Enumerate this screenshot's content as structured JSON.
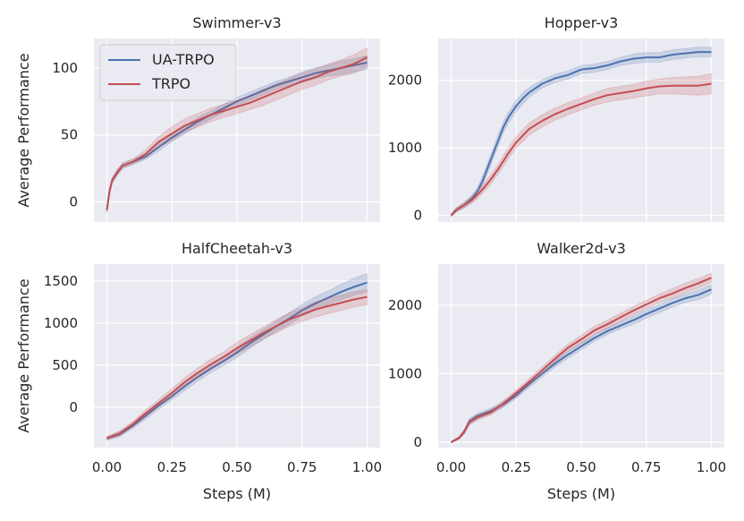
{
  "figure": {
    "ylabel": "Average Performance",
    "xlabel": "Steps (M)",
    "legend": {
      "entries": [
        "UA-TRPO",
        "TRPO"
      ],
      "placement": "upper-left of first panel"
    },
    "colors": {
      "UA-TRPO": "#4c72b0",
      "TRPO": "#c44e52",
      "background": "#eaeaf2",
      "grid": "#ffffff"
    }
  },
  "chart_data": [
    {
      "type": "line",
      "title": "Swimmer-v3",
      "xlabel": "",
      "ylabel": "Average Performance",
      "xlim": [
        -0.05,
        1.05
      ],
      "ylim": [
        -15,
        122
      ],
      "xticks": [
        0.0,
        0.25,
        0.5,
        0.75,
        1.0
      ],
      "xtick_labels": [],
      "yticks": [
        0,
        50,
        100
      ],
      "ytick_labels": [
        "0",
        "50",
        "100"
      ],
      "grid": true,
      "series": [
        {
          "name": "UA-TRPO",
          "x": [
            0.0,
            0.01,
            0.02,
            0.04,
            0.06,
            0.1,
            0.15,
            0.2,
            0.25,
            0.3,
            0.35,
            0.4,
            0.45,
            0.5,
            0.55,
            0.6,
            0.65,
            0.7,
            0.75,
            0.8,
            0.85,
            0.9,
            0.95,
            1.0
          ],
          "y": [
            -6,
            8,
            16,
            22,
            27,
            30,
            34,
            41,
            48,
            54,
            60,
            65,
            70,
            75,
            79,
            83,
            87,
            90,
            93,
            96,
            98,
            100,
            102,
            104
          ],
          "band": [
            2,
            2,
            2,
            2,
            2,
            2,
            2,
            3,
            3,
            3,
            3,
            3,
            3,
            3,
            3,
            3,
            3,
            3,
            4,
            4,
            4,
            5,
            5,
            5
          ]
        },
        {
          "name": "TRPO",
          "x": [
            0.0,
            0.01,
            0.02,
            0.04,
            0.06,
            0.1,
            0.15,
            0.2,
            0.25,
            0.3,
            0.35,
            0.4,
            0.45,
            0.5,
            0.55,
            0.6,
            0.65,
            0.7,
            0.75,
            0.8,
            0.85,
            0.9,
            0.95,
            1.0
          ],
          "y": [
            -6,
            8,
            16,
            22,
            27,
            30,
            36,
            45,
            51,
            57,
            61,
            65,
            68,
            71,
            74,
            78,
            82,
            86,
            90,
            93,
            97,
            100,
            103,
            108
          ],
          "band": [
            2,
            2,
            2,
            2,
            2,
            2,
            3,
            4,
            5,
            5,
            5,
            5,
            5,
            5,
            5,
            6,
            6,
            6,
            6,
            6,
            6,
            6,
            7,
            7
          ]
        }
      ]
    },
    {
      "type": "line",
      "title": "Hopper-v3",
      "xlabel": "",
      "ylabel": "",
      "xlim": [
        -0.05,
        1.05
      ],
      "ylim": [
        -100,
        2620
      ],
      "xticks": [
        0.0,
        0.25,
        0.5,
        0.75,
        1.0
      ],
      "xtick_labels": [],
      "yticks": [
        0,
        1000,
        2000
      ],
      "ytick_labels": [
        "0",
        "1000",
        "2000"
      ],
      "grid": true,
      "series": [
        {
          "name": "UA-TRPO",
          "x": [
            0.0,
            0.02,
            0.05,
            0.08,
            0.1,
            0.12,
            0.15,
            0.18,
            0.2,
            0.22,
            0.25,
            0.28,
            0.3,
            0.35,
            0.4,
            0.45,
            0.5,
            0.55,
            0.6,
            0.65,
            0.7,
            0.75,
            0.8,
            0.85,
            0.9,
            0.95,
            1.0
          ],
          "y": [
            0,
            80,
            150,
            250,
            350,
            500,
            800,
            1100,
            1300,
            1450,
            1620,
            1750,
            1820,
            1950,
            2030,
            2080,
            2160,
            2180,
            2220,
            2280,
            2320,
            2340,
            2340,
            2380,
            2400,
            2420,
            2420
          ],
          "band": [
            20,
            30,
            40,
            50,
            60,
            70,
            80,
            80,
            80,
            80,
            80,
            80,
            70,
            60,
            60,
            60,
            60,
            60,
            60,
            60,
            70,
            70,
            70,
            70,
            70,
            70,
            70
          ]
        },
        {
          "name": "TRPO",
          "x": [
            0.0,
            0.02,
            0.05,
            0.08,
            0.1,
            0.12,
            0.15,
            0.18,
            0.2,
            0.22,
            0.25,
            0.28,
            0.3,
            0.35,
            0.4,
            0.45,
            0.5,
            0.55,
            0.6,
            0.65,
            0.7,
            0.75,
            0.8,
            0.85,
            0.9,
            0.95,
            1.0
          ],
          "y": [
            0,
            80,
            150,
            230,
            300,
            380,
            520,
            680,
            800,
            920,
            1080,
            1200,
            1280,
            1400,
            1500,
            1580,
            1650,
            1720,
            1780,
            1810,
            1840,
            1880,
            1910,
            1920,
            1920,
            1920,
            1950
          ],
          "band": [
            20,
            30,
            40,
            50,
            60,
            60,
            70,
            70,
            80,
            80,
            80,
            90,
            90,
            90,
            90,
            90,
            90,
            90,
            100,
            100,
            100,
            110,
            110,
            120,
            130,
            140,
            150
          ]
        }
      ]
    },
    {
      "type": "line",
      "title": "HalfCheetah-v3",
      "xlabel": "Steps (M)",
      "ylabel": "Average Performance",
      "xlim": [
        -0.05,
        1.05
      ],
      "ylim": [
        -480,
        1700
      ],
      "xticks": [
        0.0,
        0.25,
        0.5,
        0.75,
        1.0
      ],
      "xtick_labels": [
        "0.00",
        "0.25",
        "0.50",
        "0.75",
        "1.00"
      ],
      "yticks": [
        0,
        500,
        1000,
        1500
      ],
      "ytick_labels": [
        "0",
        "500",
        "1000",
        "1500"
      ],
      "grid": true,
      "series": [
        {
          "name": "UA-TRPO",
          "x": [
            0.0,
            0.05,
            0.1,
            0.15,
            0.2,
            0.25,
            0.3,
            0.35,
            0.4,
            0.45,
            0.5,
            0.55,
            0.6,
            0.65,
            0.7,
            0.75,
            0.8,
            0.85,
            0.9,
            0.95,
            1.0
          ],
          "y": [
            -370,
            -320,
            -220,
            -100,
            20,
            130,
            250,
            360,
            460,
            550,
            650,
            760,
            860,
            960,
            1050,
            1150,
            1230,
            1300,
            1370,
            1430,
            1480
          ],
          "band": [
            20,
            30,
            30,
            40,
            40,
            40,
            50,
            50,
            50,
            50,
            60,
            60,
            60,
            60,
            70,
            70,
            80,
            80,
            90,
            100,
            110
          ]
        },
        {
          "name": "TRPO",
          "x": [
            0.0,
            0.05,
            0.1,
            0.15,
            0.2,
            0.25,
            0.3,
            0.35,
            0.4,
            0.45,
            0.5,
            0.55,
            0.6,
            0.65,
            0.7,
            0.75,
            0.8,
            0.85,
            0.9,
            0.95,
            1.0
          ],
          "y": [
            -370,
            -310,
            -200,
            -70,
            50,
            170,
            300,
            410,
            510,
            600,
            700,
            790,
            880,
            960,
            1040,
            1100,
            1160,
            1200,
            1240,
            1280,
            1310
          ],
          "band": [
            20,
            30,
            30,
            40,
            40,
            50,
            50,
            60,
            60,
            60,
            70,
            70,
            70,
            80,
            80,
            80,
            90,
            90,
            90,
            90,
            90
          ]
        }
      ]
    },
    {
      "type": "line",
      "title": "Walker2d-v3",
      "xlabel": "Steps (M)",
      "ylabel": "",
      "xlim": [
        -0.05,
        1.05
      ],
      "ylim": [
        -80,
        2600
      ],
      "xticks": [
        0.0,
        0.25,
        0.5,
        0.75,
        1.0
      ],
      "xtick_labels": [
        "0.00",
        "0.25",
        "0.50",
        "0.75",
        "1.00"
      ],
      "yticks": [
        0,
        1000,
        2000
      ],
      "ytick_labels": [
        "0",
        "1000",
        "2000"
      ],
      "grid": true,
      "series": [
        {
          "name": "UA-TRPO",
          "x": [
            0.0,
            0.03,
            0.05,
            0.07,
            0.1,
            0.15,
            0.2,
            0.25,
            0.3,
            0.35,
            0.4,
            0.45,
            0.5,
            0.55,
            0.6,
            0.65,
            0.7,
            0.75,
            0.8,
            0.85,
            0.9,
            0.95,
            1.0
          ],
          "y": [
            0,
            60,
            150,
            300,
            380,
            450,
            550,
            680,
            850,
            1000,
            1150,
            1280,
            1400,
            1520,
            1620,
            1700,
            1780,
            1870,
            1950,
            2030,
            2100,
            2150,
            2230
          ],
          "band": [
            10,
            20,
            30,
            40,
            40,
            40,
            40,
            40,
            50,
            50,
            50,
            50,
            50,
            50,
            50,
            50,
            60,
            60,
            60,
            60,
            60,
            70,
            70
          ]
        },
        {
          "name": "TRPO",
          "x": [
            0.0,
            0.03,
            0.05,
            0.07,
            0.1,
            0.15,
            0.2,
            0.25,
            0.3,
            0.35,
            0.4,
            0.45,
            0.5,
            0.55,
            0.6,
            0.65,
            0.7,
            0.75,
            0.8,
            0.85,
            0.9,
            0.95,
            1.0
          ],
          "y": [
            0,
            60,
            150,
            290,
            360,
            430,
            560,
            720,
            880,
            1050,
            1220,
            1380,
            1500,
            1630,
            1720,
            1820,
            1920,
            2010,
            2100,
            2170,
            2250,
            2320,
            2400
          ],
          "band": [
            10,
            20,
            30,
            40,
            40,
            40,
            40,
            40,
            50,
            50,
            50,
            50,
            60,
            60,
            60,
            60,
            60,
            60,
            60,
            70,
            70,
            70,
            70
          ]
        }
      ]
    }
  ]
}
